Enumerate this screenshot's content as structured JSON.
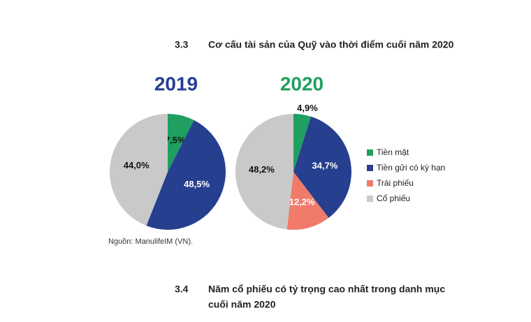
{
  "sections": [
    {
      "number": "3.3",
      "title_lines": [
        "Cơ cấu tài sản của Quỹ vào thời điểm cuối năm 2020"
      ]
    },
    {
      "number": "3.4",
      "title_lines": [
        "Năm cổ phiếu có tỷ trọng cao nhất trong danh mục",
        "cuối năm 2020"
      ]
    }
  ],
  "source": "Nguồn: ManulifeIM (VN).",
  "chart_data": [
    {
      "type": "pie",
      "title": "2019",
      "title_color": "#263f8f",
      "categories": [
        "Tiền mặt",
        "Tiền gửi có kỳ hạn",
        "Cổ phiếu"
      ],
      "values": [
        7.5,
        48.5,
        44.0
      ],
      "value_labels": [
        "7,5%",
        "48,5%",
        "44,0%"
      ],
      "colors": [
        "#1fa060",
        "#263f8f",
        "#c9c9c9"
      ],
      "label_colors": [
        "#111111",
        "#ffffff",
        "#111111"
      ]
    },
    {
      "type": "pie",
      "title": "2020",
      "title_color": "#1fa060",
      "categories": [
        "Tiền mặt",
        "Tiền gửi có kỳ hạn",
        "Trái phiếu",
        "Cổ phiếu"
      ],
      "values": [
        4.9,
        34.7,
        12.2,
        48.2
      ],
      "value_labels": [
        "4,9%",
        "34,7%",
        "12,2%",
        "48,2%"
      ],
      "colors": [
        "#1fa060",
        "#263f8f",
        "#f07b6b",
        "#c9c9c9"
      ],
      "label_colors": [
        "#111111",
        "#ffffff",
        "#ffffff",
        "#111111"
      ],
      "legend": true
    }
  ]
}
